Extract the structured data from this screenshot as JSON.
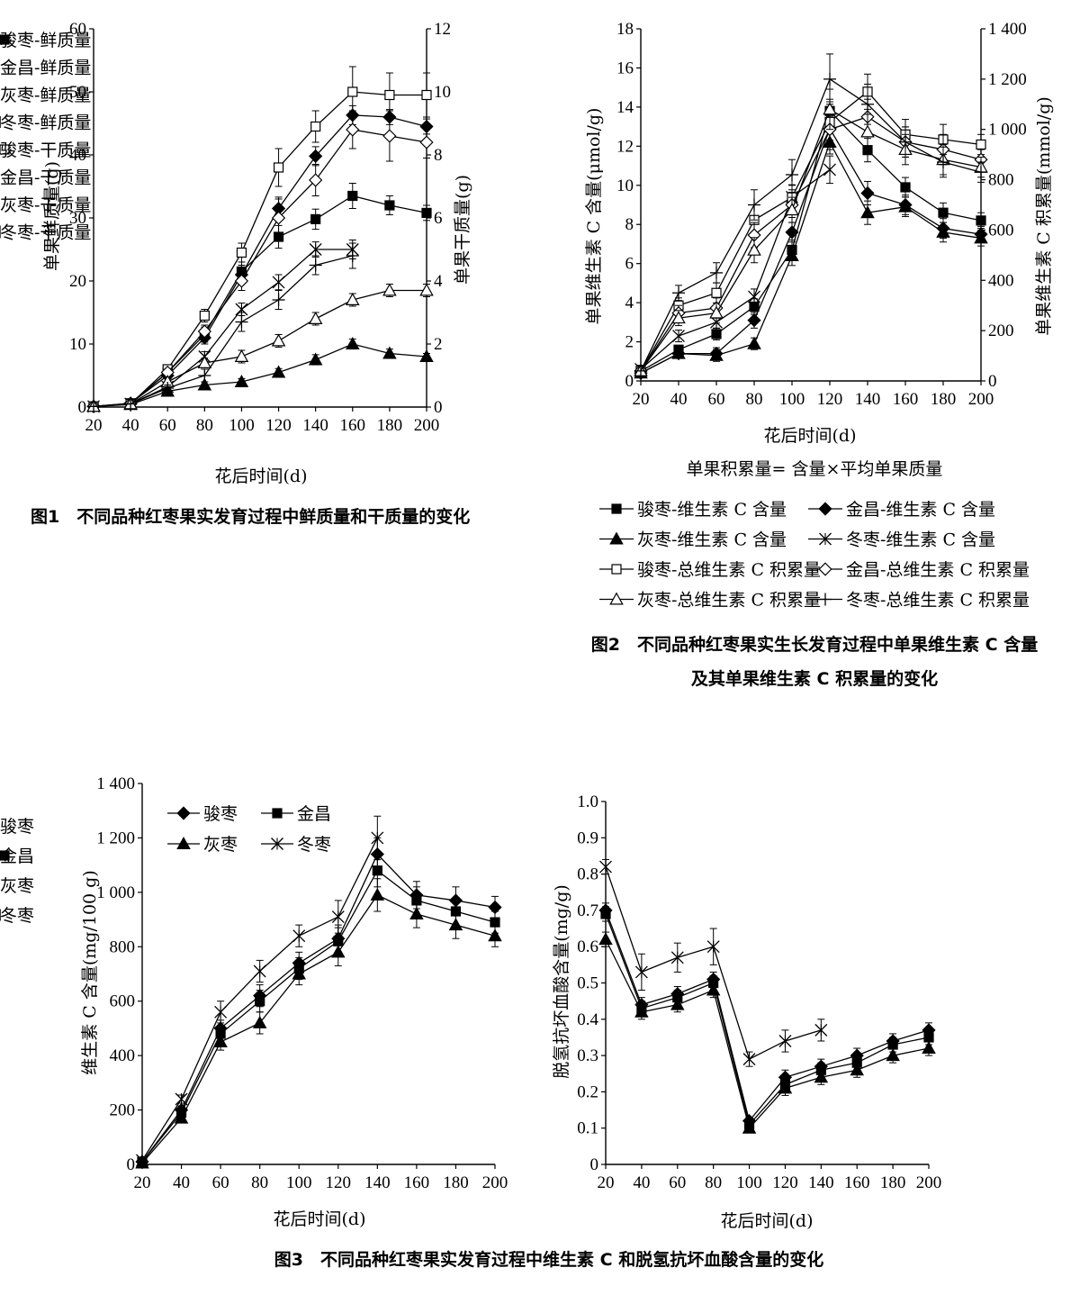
{
  "figures": {
    "fig1": {
      "caption": "图1　不同品种红枣果实发育过程中鲜质量和干质量的变化",
      "xlabel": "花后时间(d)",
      "ylabel": "单果鲜质量(g)",
      "ylabel2": "单果干质量(g)"
    },
    "fig2": {
      "caption_line1": "图2　不同品种红枣果实生长发育过程中单果维生素 C 含量",
      "caption_line2": "及其单果维生素 C 积累量的变化",
      "xlabel": "花后时间(d)",
      "ylabel": "单果维生素 C 含量(μmol/g)",
      "ylabel2": "单果维生素 C 积累量(mmol/g)",
      "note": "单果积累量= 含量×平均单果质量"
    },
    "fig3": {
      "caption": "图3　不同品种红枣果实发育过程中维生素 C 和脱氢抗坏血酸含量的变化",
      "xlabel_a": "花后时间(d)",
      "ylabel_a": "维生素 C 含量(mg/100 g)",
      "xlabel_b": "花后时间(d)",
      "ylabel_b": "脱氢抗坏血酸含量(mg/g)"
    }
  },
  "chart_data": [
    {
      "id": "fig1",
      "type": "line",
      "x": [
        20,
        40,
        60,
        80,
        100,
        120,
        140,
        160,
        180,
        200
      ],
      "xlim": [
        20,
        200
      ],
      "ylim": [
        0,
        60
      ],
      "y2lim": [
        0,
        12
      ],
      "xticks": [
        "20",
        "40",
        "60",
        "80",
        "100",
        "120",
        "140",
        "160",
        "180",
        "200"
      ],
      "yticks": [
        "0",
        "10",
        "20",
        "30",
        "40",
        "50",
        "60"
      ],
      "y2ticks": [
        "0",
        "2",
        "4",
        "6",
        "8",
        "10",
        "12"
      ],
      "xlabel": "花后时间(d)",
      "ylabel": "单果鲜质量(g)",
      "ylabel2": "单果干质量(g)",
      "series": [
        {
          "name": "骏枣-鲜质量",
          "marker": "square-filled",
          "axis": "left",
          "values": [
            0.1,
            0.6,
            5.5,
            11.5,
            21.5,
            27,
            29.8,
            33.5,
            32,
            30.8
          ],
          "err": [
            0,
            0,
            0.6,
            1.2,
            1.5,
            1.8,
            1.6,
            2,
            1.5,
            1.2
          ]
        },
        {
          "name": "金昌-鲜质量",
          "marker": "diamond-filled",
          "axis": "left",
          "values": [
            0.1,
            0.6,
            5,
            11,
            21,
            31.5,
            39.8,
            46.3,
            46,
            44.5
          ],
          "err": [
            0,
            0,
            0.5,
            1,
            1.5,
            1.8,
            1.5,
            1.5,
            1.2,
            1.2
          ]
        },
        {
          "name": "灰枣-鲜质量",
          "marker": "triangle-filled",
          "axis": "left",
          "values": [
            0.1,
            0.4,
            2.5,
            3.5,
            4,
            5.5,
            7.5,
            10,
            8.5,
            8
          ],
          "err": [
            0,
            0,
            0.3,
            0.5,
            0.5,
            0.6,
            0.8,
            0.8,
            0.7,
            0.5
          ]
        },
        {
          "name": "冬枣-鲜质量",
          "marker": "x",
          "axis": "left",
          "values": [
            0.1,
            0.5,
            3.2,
            8,
            15.5,
            19.8,
            25,
            25,
            null,
            null
          ],
          "err": [
            0,
            0,
            0.4,
            0.8,
            1,
            1.2,
            1.2,
            1.5,
            0,
            0
          ]
        },
        {
          "name": "骏枣-干质量",
          "marker": "square-open",
          "axis": "right",
          "values": [
            0.02,
            0.1,
            1.2,
            2.9,
            4.9,
            7.6,
            8.9,
            10,
            9.9,
            9.9
          ],
          "err": [
            0,
            0,
            0.1,
            0.2,
            0.3,
            0.6,
            0.5,
            0.8,
            0.7,
            0.7
          ]
        },
        {
          "name": "金昌-干质量",
          "marker": "diamond-open",
          "axis": "right",
          "values": [
            0.02,
            0.1,
            1.1,
            2.4,
            4,
            6,
            7.2,
            8.8,
            8.6,
            8.4
          ],
          "err": [
            0,
            0,
            0.1,
            0.2,
            0.3,
            0.6,
            0.5,
            0.6,
            0.8,
            0.5
          ]
        },
        {
          "name": "灰枣-干质量",
          "marker": "triangle-open",
          "axis": "right",
          "values": [
            0.02,
            0.1,
            0.8,
            1.4,
            1.6,
            2.1,
            2.8,
            3.4,
            3.7,
            3.7
          ],
          "err": [
            0,
            0,
            0.1,
            0.15,
            0.2,
            0.2,
            0.2,
            0.2,
            0.2,
            0.2
          ]
        },
        {
          "name": "冬枣-干质量",
          "marker": "plus",
          "axis": "right",
          "values": [
            0.02,
            0.1,
            0.6,
            1,
            2.7,
            3.4,
            4.5,
            4.8,
            null,
            null
          ],
          "err": [
            0,
            0,
            0.1,
            0.2,
            0.3,
            0.3,
            0.3,
            0.4,
            0,
            0
          ]
        }
      ]
    },
    {
      "id": "fig2",
      "type": "line",
      "x": [
        20,
        40,
        60,
        80,
        100,
        120,
        140,
        160,
        180,
        200
      ],
      "xlim": [
        20,
        200
      ],
      "ylim": [
        0,
        18
      ],
      "y2lim": [
        0,
        1400
      ],
      "xticks": [
        "20",
        "40",
        "60",
        "80",
        "100",
        "120",
        "140",
        "160",
        "180",
        "200"
      ],
      "yticks": [
        "0",
        "2",
        "4",
        "6",
        "8",
        "10",
        "12",
        "14",
        "16",
        "18"
      ],
      "y2ticks": [
        "0",
        "200",
        "400",
        "600",
        "800",
        "1 000",
        "1 200",
        "1 400"
      ],
      "xlabel": "花后时间(d)",
      "ylabel": "单果维生素 C 含量(μmol/g)",
      "ylabel2": "单果维生素 C 积累量(mmol/g)",
      "series": [
        {
          "name": "骏枣-维生素 C 含量",
          "marker": "square-filled",
          "axis": "left",
          "values": [
            0.5,
            1.6,
            2.4,
            3.8,
            6.7,
            13.8,
            11.8,
            9.9,
            8.6,
            8.2
          ],
          "err": [
            0.2,
            0.2,
            0.3,
            0.4,
            0.5,
            0.6,
            0.6,
            0.5,
            0.5,
            0.4
          ]
        },
        {
          "name": "金昌-维生素 C 含量",
          "marker": "diamond-filled",
          "axis": "left",
          "values": [
            0.4,
            1.4,
            1.4,
            3.1,
            7.6,
            12.9,
            9.6,
            9,
            7.8,
            7.5
          ],
          "err": [
            0.2,
            0.2,
            0.3,
            0.4,
            0.5,
            0.6,
            0.6,
            0.5,
            0.5,
            0.4
          ]
        },
        {
          "name": "灰枣-维生素 C 含量",
          "marker": "triangle-filled",
          "axis": "left",
          "values": [
            0.4,
            1.4,
            1.3,
            1.9,
            6.4,
            12.2,
            8.6,
            8.9,
            7.6,
            7.3
          ],
          "err": [
            0.2,
            0.2,
            0.3,
            0.3,
            0.5,
            0.6,
            0.6,
            0.5,
            0.5,
            0.4
          ]
        },
        {
          "name": "冬枣-维生素 C 含量",
          "marker": "x",
          "axis": "left",
          "values": [
            0.6,
            2.3,
            3,
            4.3,
            9.4,
            10.8,
            null,
            null,
            null,
            null
          ],
          "err": [
            0.2,
            0.3,
            0.3,
            0.4,
            0.6,
            0.7,
            0,
            0,
            0,
            0
          ]
        },
        {
          "name": "骏枣-总维生素 C 积累量",
          "marker": "square-open",
          "axis": "right",
          "values": [
            40,
            300,
            350,
            640,
            730,
            1030,
            1150,
            980,
            960,
            940
          ],
          "err": [
            20,
            30,
            40,
            60,
            50,
            80,
            70,
            60,
            60,
            40
          ]
        },
        {
          "name": "金昌-总维生素 C 积累量",
          "marker": "diamond-open",
          "axis": "right",
          "values": [
            40,
            270,
            290,
            580,
            700,
            1000,
            1050,
            950,
            920,
            880
          ],
          "err": [
            20,
            30,
            40,
            50,
            50,
            80,
            70,
            60,
            60,
            40
          ]
        },
        {
          "name": "灰枣-总维生素 C 积累量",
          "marker": "triangle-open",
          "axis": "right",
          "values": [
            40,
            250,
            270,
            520,
            680,
            1080,
            990,
            920,
            880,
            850
          ],
          "err": [
            20,
            30,
            40,
            50,
            50,
            80,
            70,
            60,
            60,
            40
          ]
        },
        {
          "name": "冬枣-总维生素 C 积累量",
          "marker": "plus",
          "axis": "right",
          "values": [
            40,
            350,
            430,
            700,
            820,
            1200,
            1100,
            950,
            870,
            830
          ],
          "err": [
            20,
            30,
            40,
            60,
            60,
            100,
            80,
            60,
            60,
            40
          ]
        }
      ]
    },
    {
      "id": "fig3a",
      "type": "line",
      "x": [
        20,
        40,
        60,
        80,
        100,
        120,
        140,
        160,
        180,
        200
      ],
      "xlim": [
        20,
        200
      ],
      "ylim": [
        0,
        1400
      ],
      "xticks": [
        "20",
        "40",
        "60",
        "80",
        "100",
        "120",
        "140",
        "160",
        "180",
        "200"
      ],
      "yticks": [
        "0",
        "200",
        "400",
        "600",
        "800",
        "1 000",
        "1 200",
        "1 400"
      ],
      "xlabel": "花后时间(d)",
      "ylabel": "维生素 C 含量(mg/100 g)",
      "series": [
        {
          "name": "骏枣",
          "marker": "diamond-filled",
          "values": [
            10,
            200,
            500,
            620,
            740,
            830,
            1140,
            990,
            970,
            945
          ],
          "err": [
            5,
            15,
            30,
            40,
            40,
            50,
            60,
            50,
            50,
            40
          ]
        },
        {
          "name": "金昌",
          "marker": "square-filled",
          "values": [
            10,
            190,
            480,
            600,
            720,
            820,
            1080,
            970,
            930,
            890
          ],
          "err": [
            5,
            15,
            30,
            40,
            40,
            50,
            60,
            50,
            50,
            40
          ]
        },
        {
          "name": "灰枣",
          "marker": "triangle-filled",
          "values": [
            5,
            170,
            450,
            520,
            700,
            780,
            990,
            920,
            880,
            840
          ],
          "err": [
            5,
            15,
            30,
            40,
            40,
            50,
            60,
            50,
            50,
            40
          ]
        },
        {
          "name": "冬枣",
          "marker": "x",
          "values": [
            15,
            240,
            560,
            710,
            840,
            910,
            1200,
            null,
            null,
            null
          ],
          "err": [
            5,
            15,
            40,
            40,
            40,
            60,
            80,
            0,
            0,
            0
          ]
        }
      ]
    },
    {
      "id": "fig3b",
      "type": "line",
      "x": [
        20,
        40,
        60,
        80,
        100,
        120,
        140,
        160,
        180,
        200
      ],
      "xlim": [
        20,
        200
      ],
      "ylim": [
        0,
        1.0
      ],
      "xticks": [
        "20",
        "40",
        "60",
        "80",
        "100",
        "120",
        "140",
        "160",
        "180",
        "200"
      ],
      "yticks": [
        "0",
        "0.1",
        "0.2",
        "0.3",
        "0.4",
        "0.5",
        "0.6",
        "0.7",
        "0.8",
        "0.9",
        "1.0"
      ],
      "xlabel": "花后时间(d)",
      "ylabel": "脱氢抗坏血酸含量(mg/g)",
      "series": [
        {
          "name": "骏枣",
          "marker": "diamond-filled",
          "values": [
            0.7,
            0.44,
            0.47,
            0.51,
            0.12,
            0.24,
            0.27,
            0.3,
            0.34,
            0.37
          ],
          "err": [
            0.02,
            0.02,
            0.02,
            0.02,
            0.01,
            0.02,
            0.02,
            0.02,
            0.02,
            0.02
          ]
        },
        {
          "name": "金昌",
          "marker": "square-filled",
          "values": [
            0.69,
            0.43,
            0.46,
            0.5,
            0.11,
            0.22,
            0.26,
            0.28,
            0.33,
            0.35
          ],
          "err": [
            0.02,
            0.02,
            0.02,
            0.02,
            0.01,
            0.02,
            0.02,
            0.02,
            0.02,
            0.02
          ]
        },
        {
          "name": "灰枣",
          "marker": "triangle-filled",
          "values": [
            0.62,
            0.42,
            0.44,
            0.48,
            0.1,
            0.21,
            0.24,
            0.26,
            0.3,
            0.32
          ],
          "err": [
            0.02,
            0.02,
            0.02,
            0.02,
            0.01,
            0.02,
            0.02,
            0.02,
            0.02,
            0.02
          ]
        },
        {
          "name": "冬枣",
          "marker": "x",
          "values": [
            0.82,
            0.53,
            0.57,
            0.6,
            0.29,
            0.34,
            0.37,
            null,
            null,
            null
          ],
          "err": [
            0.02,
            0.05,
            0.04,
            0.05,
            0.02,
            0.03,
            0.03,
            0,
            0,
            0
          ]
        }
      ]
    }
  ]
}
